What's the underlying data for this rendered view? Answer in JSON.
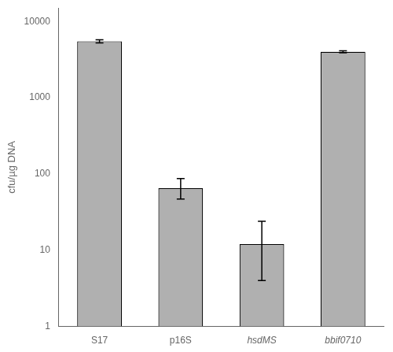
{
  "chart_data": {
    "type": "bar",
    "categories": [
      "S17",
      "p16S",
      "hsdMS",
      "bbif0710"
    ],
    "values": [
      5500,
      65,
      12,
      4000
    ],
    "yerr_upper": [
      270,
      22,
      12,
      120
    ],
    "yerr_lower": [
      270,
      18,
      8,
      120
    ],
    "color": "#b0b0b0",
    "ylabel": "cfu/µg DNA",
    "ylim": [
      1,
      15000
    ],
    "yticks": [
      1,
      10,
      100,
      1000,
      10000
    ],
    "log": "y",
    "grid": false
  }
}
